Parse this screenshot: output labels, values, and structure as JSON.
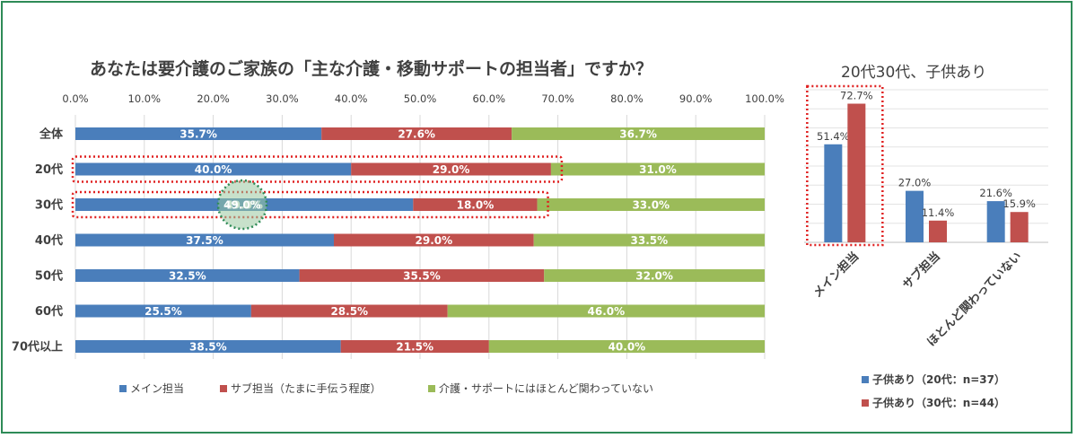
{
  "colors": {
    "main": "#4a7ebb",
    "sub": "#c0504d",
    "none": "#9bbb59",
    "highlight_box": "#e02020",
    "highlight_circle": "#2e8b57",
    "frame": "#2e8b57"
  },
  "chart_data": [
    {
      "type": "bar",
      "orientation": "horizontal-stacked",
      "title": "あなたは要介護のご家族の「主な介護・移動サポートの担当者」ですか？",
      "categories": [
        "全体",
        "20代",
        "30代",
        "40代",
        "50代",
        "60代",
        "70代以上"
      ],
      "series": [
        {
          "name": "メイン担当",
          "values": [
            35.7,
            40.0,
            49.0,
            37.5,
            32.5,
            25.5,
            38.5
          ]
        },
        {
          "name": "サブ担当（たまに手伝う程度）",
          "values": [
            27.6,
            29.0,
            18.0,
            29.0,
            35.5,
            28.5,
            21.5
          ]
        },
        {
          "name": "介護・サポートにはほとんど関わっていない",
          "values": [
            36.7,
            31.0,
            33.0,
            33.5,
            32.0,
            46.0,
            40.0
          ]
        }
      ],
      "x_ticks": [
        "0.0%",
        "10.0%",
        "20.0%",
        "30.0%",
        "40.0%",
        "50.0%",
        "60.0%",
        "70.0%",
        "80.0%",
        "90.0%",
        "100.0%"
      ],
      "xlim": [
        0,
        100
      ],
      "grid": true,
      "legend": "bottom",
      "highlighted_rows": [
        "20代",
        "30代"
      ],
      "highlighted_value": {
        "category": "30代",
        "series": "メイン担当",
        "value": 49.0
      }
    },
    {
      "type": "bar",
      "orientation": "vertical-grouped",
      "title": "20代30代、子供あり",
      "categories": [
        "メイン担当",
        "サブ担当",
        "ほとんど関わっていない"
      ],
      "series": [
        {
          "name": "子供あり（20代：n=37）",
          "values": [
            51.4,
            27.0,
            21.6
          ]
        },
        {
          "name": "子供あり（30代：n=44）",
          "values": [
            72.7,
            11.4,
            15.9
          ]
        }
      ],
      "ylim": [
        0,
        80
      ],
      "grid": true,
      "legend": "bottom",
      "highlighted_category": "メイン担当"
    }
  ]
}
